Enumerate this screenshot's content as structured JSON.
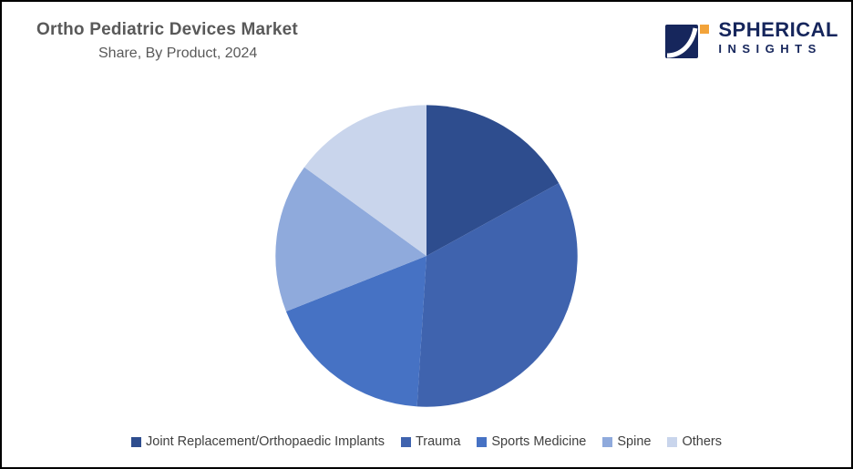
{
  "title": "Ortho Pediatric Devices Market",
  "subtitle": "Share, By Product, 2024",
  "logo": {
    "primary": "SPHERICAL",
    "secondary": "INSIGHTS",
    "navy": "#16265c",
    "orange": "#f2a33a"
  },
  "chart_data": {
    "type": "pie",
    "title": "Ortho Pediatric Devices Market Share, By Product, 2024",
    "categories": [
      "Joint Replacement/Orthopaedic Implants",
      "Trauma",
      "Sports Medicine",
      "Spine",
      "Others"
    ],
    "values": [
      17,
      34,
      18,
      16,
      15
    ],
    "unit": "%",
    "colors": [
      "#2e4d8e",
      "#3f63ae",
      "#4672c4",
      "#8faadc",
      "#c9d5ec"
    ],
    "start_angle_deg": 0,
    "direction": "clockwise",
    "legend_position": "bottom",
    "data_labels": "none"
  }
}
